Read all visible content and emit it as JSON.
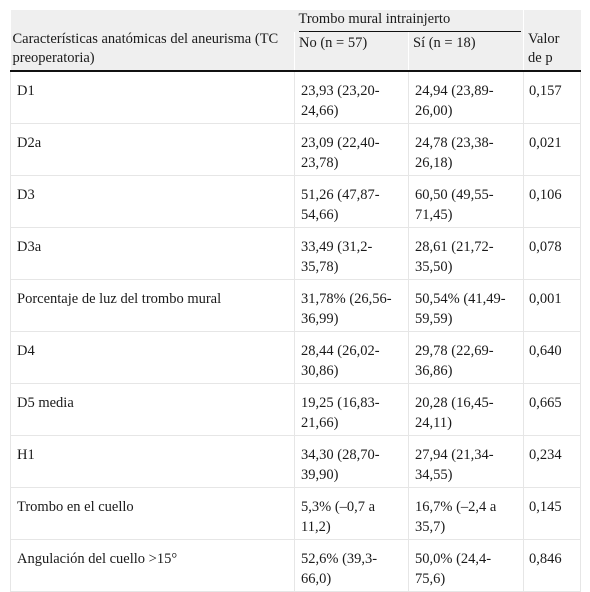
{
  "table": {
    "group_header": "Trombo mural intrainjerto",
    "col_characteristics": "Características anatómicas del aneurisma (TC preoperatoria)",
    "col_no": "No (n = 57)",
    "col_si": "Sí (n = 18)",
    "col_p": "Valor de p",
    "rows": [
      {
        "label": "D1",
        "no": "23,93 (23,20-24,66)",
        "si": "24,94 (23,89-26,00)",
        "p": "0,157"
      },
      {
        "label": "D2a",
        "no": "23,09 (22,40-23,78)",
        "si": "24,78 (23,38-26,18)",
        "p": "0,021"
      },
      {
        "label": "D3",
        "no": "51,26 (47,87-54,66)",
        "si": "60,50 (49,55-71,45)",
        "p": "0,106"
      },
      {
        "label": "D3a",
        "no": "33,49 (31,2-35,78)",
        "si": "28,61 (21,72-35,50)",
        "p": "0,078"
      },
      {
        "label": "Porcentaje de luz del trombo mural",
        "no": "31,78% (26,56-36,99)",
        "si": "50,54% (41,49-59,59)",
        "p": "0,001"
      },
      {
        "label": "D4",
        "no": "28,44 (26,02-30,86)",
        "si": "29,78 (22,69-36,86)",
        "p": "0,640"
      },
      {
        "label": "D5 media",
        "no": "19,25 (16,83-21,66)",
        "si": "20,28 (16,45-24,11)",
        "p": "0,665"
      },
      {
        "label": "H1",
        "no": "34,30 (28,70-39,90)",
        "si": "27,94 (21,34-34,55)",
        "p": "0,234"
      },
      {
        "label": "Trombo en el cuello",
        "no": "5,3% (–0,7 a 11,2)",
        "si": "16,7% (–2,4 a 35,7)",
        "p": "0,145"
      },
      {
        "label": "Angulación del cuello >15°",
        "no": "52,6% (39,3-66,0)",
        "si": "50,0% (24,4-75,6)",
        "p": "0,846"
      }
    ]
  }
}
